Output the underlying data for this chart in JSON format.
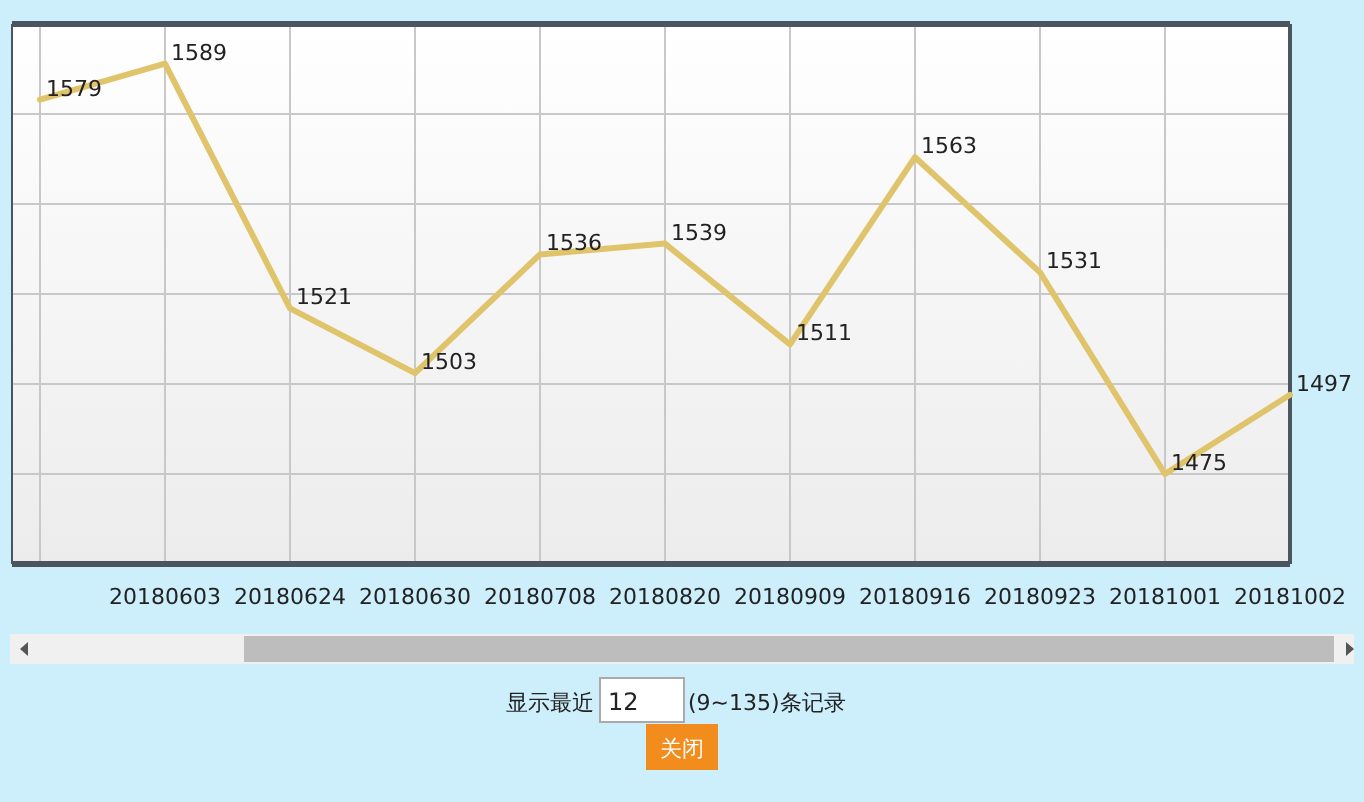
{
  "chart_data": {
    "type": "line",
    "categories": [
      null,
      "20180603",
      "20180624",
      "20180630",
      "20180708",
      "20180820",
      "20180909",
      "20180916",
      "20180923",
      "20181001",
      "20181002"
    ],
    "values": [
      1579,
      1589,
      1521,
      1503,
      1536,
      1539,
      1511,
      1563,
      1531,
      1475,
      1497
    ],
    "color": "#e0c46c",
    "data_labels": true,
    "ylim": [
      1450,
      1600
    ],
    "yticks": [
      {
        "value": 1450,
        "label": null
      },
      {
        "value": 1475,
        "label": null
      },
      {
        "value": 1500,
        "label": null
      },
      {
        "value": 1525,
        "label": null
      },
      {
        "value": 1550,
        "label": null
      },
      {
        "value": 1575,
        "label": null
      },
      {
        "value": 1600,
        "label": null
      }
    ],
    "tick_labels": "x",
    "grid": true,
    "annotations": [
      "显示最近",
      "12",
      "(9~135)条记录",
      "关闭"
    ]
  }
}
